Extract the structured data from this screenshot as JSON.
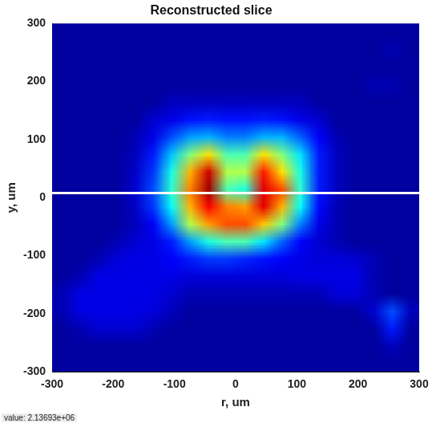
{
  "chart_data": {
    "type": "heatmap",
    "title": "Reconstructed slice",
    "x_label": "r, um",
    "y_label": "y, um",
    "xlim": [
      -300,
      300
    ],
    "ylim": [
      -300,
      300
    ],
    "xticks": [
      -300,
      -200,
      -100,
      0,
      100,
      200,
      300
    ],
    "yticks": [
      -300,
      -200,
      -100,
      0,
      100,
      200,
      300
    ],
    "grid": false,
    "annotations": [
      "value: 2.13693e+06"
    ],
    "lines": [
      {
        "y": 8,
        "color": "#ffffff"
      }
    ],
    "crange": [
      0,
      1
    ],
    "x": [
      -285,
      -255,
      -225,
      -195,
      -165,
      -135,
      -105,
      -75,
      -45,
      -15,
      15,
      45,
      75,
      105,
      135,
      165,
      195,
      225,
      255,
      285
    ],
    "y": [
      285,
      255,
      225,
      195,
      165,
      135,
      105,
      75,
      45,
      15,
      -15,
      -45,
      -75,
      -105,
      -135,
      -165,
      -195,
      -225,
      -255,
      -285
    ],
    "z": [
      [
        0.03,
        0.03,
        0.03,
        0.03,
        0.03,
        0.03,
        0.03,
        0.03,
        0.03,
        0.03,
        0.03,
        0.03,
        0.03,
        0.03,
        0.03,
        0.03,
        0.03,
        0.03,
        0.03,
        0.03
      ],
      [
        0.03,
        0.03,
        0.03,
        0.03,
        0.03,
        0.03,
        0.03,
        0.03,
        0.03,
        0.03,
        0.03,
        0.03,
        0.03,
        0.03,
        0.03,
        0.03,
        0.03,
        0.03,
        0.05,
        0.03
      ],
      [
        0.03,
        0.03,
        0.03,
        0.03,
        0.03,
        0.03,
        0.03,
        0.03,
        0.03,
        0.03,
        0.03,
        0.03,
        0.03,
        0.03,
        0.03,
        0.03,
        0.03,
        0.03,
        0.03,
        0.03
      ],
      [
        0.03,
        0.03,
        0.03,
        0.03,
        0.03,
        0.03,
        0.03,
        0.03,
        0.03,
        0.03,
        0.03,
        0.03,
        0.03,
        0.03,
        0.03,
        0.03,
        0.03,
        0.05,
        0.05,
        0.03
      ],
      [
        0.03,
        0.03,
        0.03,
        0.03,
        0.03,
        0.03,
        0.06,
        0.06,
        0.06,
        0.06,
        0.06,
        0.06,
        0.06,
        0.06,
        0.03,
        0.03,
        0.03,
        0.03,
        0.03,
        0.03
      ],
      [
        0.03,
        0.03,
        0.03,
        0.03,
        0.03,
        0.08,
        0.1,
        0.14,
        0.15,
        0.14,
        0.14,
        0.15,
        0.14,
        0.1,
        0.08,
        0.03,
        0.03,
        0.03,
        0.03,
        0.03
      ],
      [
        0.03,
        0.03,
        0.03,
        0.03,
        0.05,
        0.1,
        0.2,
        0.28,
        0.3,
        0.25,
        0.25,
        0.3,
        0.3,
        0.22,
        0.12,
        0.05,
        0.03,
        0.03,
        0.03,
        0.03
      ],
      [
        0.03,
        0.03,
        0.03,
        0.03,
        0.06,
        0.15,
        0.32,
        0.5,
        0.65,
        0.45,
        0.45,
        0.65,
        0.5,
        0.35,
        0.15,
        0.06,
        0.03,
        0.03,
        0.03,
        0.03
      ],
      [
        0.03,
        0.03,
        0.03,
        0.03,
        0.07,
        0.18,
        0.4,
        0.7,
        0.92,
        0.55,
        0.55,
        0.85,
        0.65,
        0.4,
        0.15,
        0.06,
        0.03,
        0.03,
        0.03,
        0.03
      ],
      [
        0.03,
        0.03,
        0.03,
        0.03,
        0.08,
        0.2,
        0.42,
        0.75,
        0.97,
        0.45,
        0.4,
        0.9,
        0.8,
        0.42,
        0.15,
        0.06,
        0.03,
        0.03,
        0.03,
        0.03
      ],
      [
        0.03,
        0.03,
        0.03,
        0.03,
        0.07,
        0.18,
        0.38,
        0.7,
        0.88,
        0.75,
        0.72,
        0.9,
        0.7,
        0.38,
        0.13,
        0.05,
        0.03,
        0.03,
        0.03,
        0.03
      ],
      [
        0.03,
        0.03,
        0.03,
        0.03,
        0.06,
        0.12,
        0.28,
        0.55,
        0.72,
        0.8,
        0.8,
        0.68,
        0.5,
        0.25,
        0.1,
        0.05,
        0.03,
        0.03,
        0.03,
        0.03
      ],
      [
        0.03,
        0.03,
        0.03,
        0.05,
        0.08,
        0.1,
        0.15,
        0.28,
        0.4,
        0.45,
        0.45,
        0.35,
        0.22,
        0.12,
        0.08,
        0.05,
        0.03,
        0.03,
        0.03,
        0.03
      ],
      [
        0.03,
        0.03,
        0.05,
        0.09,
        0.1,
        0.1,
        0.12,
        0.15,
        0.18,
        0.18,
        0.16,
        0.14,
        0.12,
        0.1,
        0.09,
        0.09,
        0.08,
        0.05,
        0.03,
        0.03
      ],
      [
        0.03,
        0.05,
        0.1,
        0.1,
        0.1,
        0.1,
        0.1,
        0.09,
        0.09,
        0.09,
        0.09,
        0.09,
        0.09,
        0.1,
        0.1,
        0.1,
        0.1,
        0.05,
        0.03,
        0.03
      ],
      [
        0.05,
        0.1,
        0.1,
        0.1,
        0.1,
        0.1,
        0.08,
        0.05,
        0.05,
        0.05,
        0.05,
        0.05,
        0.05,
        0.05,
        0.05,
        0.09,
        0.09,
        0.05,
        0.03,
        0.03
      ],
      [
        0.05,
        0.1,
        0.1,
        0.1,
        0.1,
        0.09,
        0.06,
        0.03,
        0.03,
        0.03,
        0.03,
        0.03,
        0.03,
        0.03,
        0.03,
        0.03,
        0.03,
        0.08,
        0.2,
        0.06
      ],
      [
        0.03,
        0.05,
        0.08,
        0.08,
        0.08,
        0.05,
        0.03,
        0.03,
        0.03,
        0.03,
        0.03,
        0.03,
        0.03,
        0.03,
        0.03,
        0.03,
        0.03,
        0.03,
        0.15,
        0.03
      ],
      [
        0.03,
        0.03,
        0.03,
        0.03,
        0.03,
        0.03,
        0.03,
        0.03,
        0.03,
        0.03,
        0.03,
        0.03,
        0.03,
        0.03,
        0.03,
        0.03,
        0.03,
        0.03,
        0.06,
        0.03
      ],
      [
        0.03,
        0.03,
        0.03,
        0.03,
        0.03,
        0.03,
        0.03,
        0.03,
        0.03,
        0.03,
        0.03,
        0.03,
        0.03,
        0.03,
        0.03,
        0.03,
        0.03,
        0.03,
        0.03,
        0.03
      ]
    ]
  }
}
